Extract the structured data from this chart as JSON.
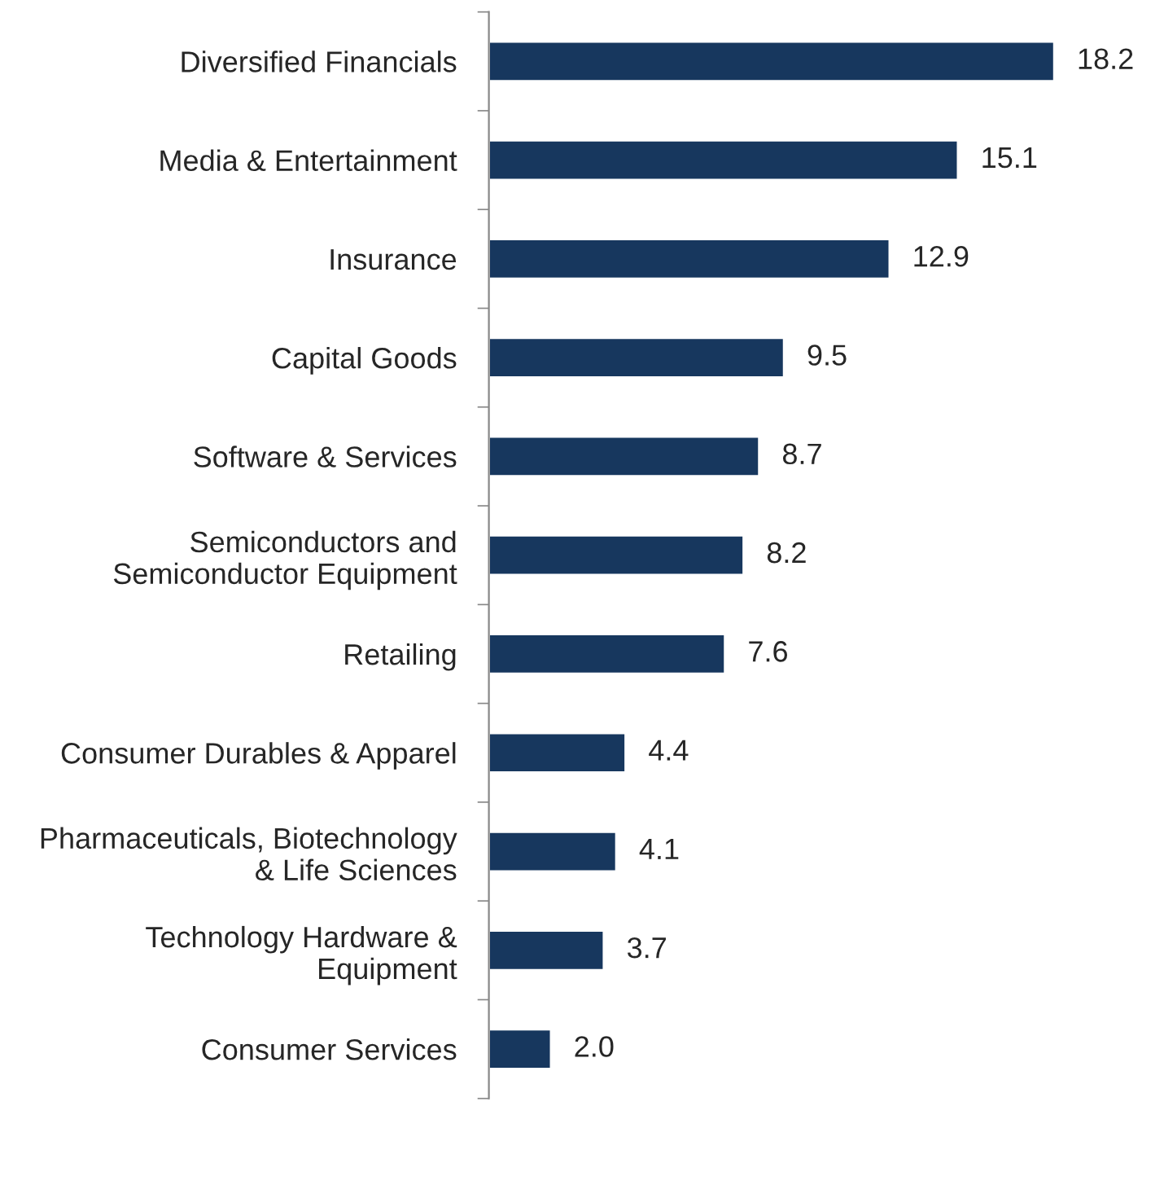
{
  "chart_data": {
    "type": "bar",
    "orientation": "horizontal",
    "categories": [
      "Diversified Financials",
      "Media & Entertainment",
      "Insurance",
      "Capital Goods",
      "Software & Services",
      "Semiconductors and\nSemiconductor Equipment",
      "Retailing",
      "Consumer Durables & Apparel",
      "Pharmaceuticals, Biotechnology\n& Life Sciences",
      "Technology Hardware &\nEquipment",
      "Consumer Services"
    ],
    "series": [
      {
        "color": "#17375e",
        "values": [
          18.2,
          15.1,
          12.9,
          9.5,
          8.7,
          8.2,
          7.6,
          4.4,
          4.1,
          3.7,
          2.0
        ],
        "value_labels": [
          "18.2",
          "15.1",
          "12.9",
          "9.5",
          "8.7",
          "8.2",
          "7.6",
          "4.4",
          "4.1",
          "3.7",
          "2.0"
        ]
      }
    ],
    "grid": false
  }
}
